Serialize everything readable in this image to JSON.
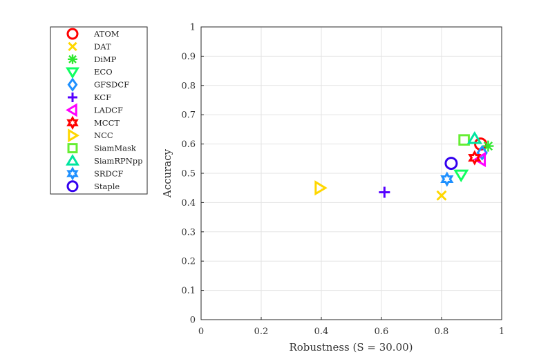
{
  "chart_data": {
    "type": "scatter",
    "xlabel": "Robustness (S = 30.00)",
    "ylabel": "Accuracy",
    "xlim": [
      0,
      1
    ],
    "ylim": [
      0,
      1
    ],
    "xticks": [
      "0",
      "0.2",
      "0.4",
      "0.6",
      "0.8",
      "1"
    ],
    "yticks": [
      "0",
      "0.1",
      "0.2",
      "0.3",
      "0.4",
      "0.5",
      "0.6",
      "0.7",
      "0.8",
      "0.9",
      "1"
    ],
    "grid": true,
    "legend_position": "outside-left-top",
    "series": [
      {
        "name": "ATOM",
        "marker": "circle",
        "color": "#ff0000",
        "x": 0.93,
        "y": 0.6
      },
      {
        "name": "DAT",
        "marker": "x",
        "color": "#ffd700",
        "x": 0.8,
        "y": 0.424
      },
      {
        "name": "DiMP",
        "marker": "asterisk",
        "color": "#2ee82e",
        "x": 0.955,
        "y": 0.593
      },
      {
        "name": "ECO",
        "marker": "triangle-down",
        "color": "#10ff60",
        "x": 0.865,
        "y": 0.495
      },
      {
        "name": "GFSDCF",
        "marker": "diamond",
        "color": "#1e90ff",
        "x": 0.935,
        "y": 0.57
      },
      {
        "name": "KCF",
        "marker": "plus",
        "color": "#5500ff",
        "x": 0.61,
        "y": 0.435
      },
      {
        "name": "LADCF",
        "marker": "triangle-left",
        "color": "#ff00ff",
        "x": 0.93,
        "y": 0.547
      },
      {
        "name": "MCCT",
        "marker": "hexagram",
        "color": "#ff0000",
        "x": 0.91,
        "y": 0.553
      },
      {
        "name": "NCC",
        "marker": "triangle-right",
        "color": "#ffd700",
        "x": 0.395,
        "y": 0.45
      },
      {
        "name": "SiamMask",
        "marker": "square",
        "color": "#66ee33",
        "x": 0.875,
        "y": 0.614
      },
      {
        "name": "SiamRPNpp",
        "marker": "triangle-up",
        "color": "#00e5a0",
        "x": 0.91,
        "y": 0.618
      },
      {
        "name": "SRDCF",
        "marker": "hexagram",
        "color": "#1e90ff",
        "x": 0.818,
        "y": 0.48
      },
      {
        "name": "Staple",
        "marker": "circle",
        "color": "#3300ee",
        "x": 0.832,
        "y": 0.534
      }
    ]
  }
}
